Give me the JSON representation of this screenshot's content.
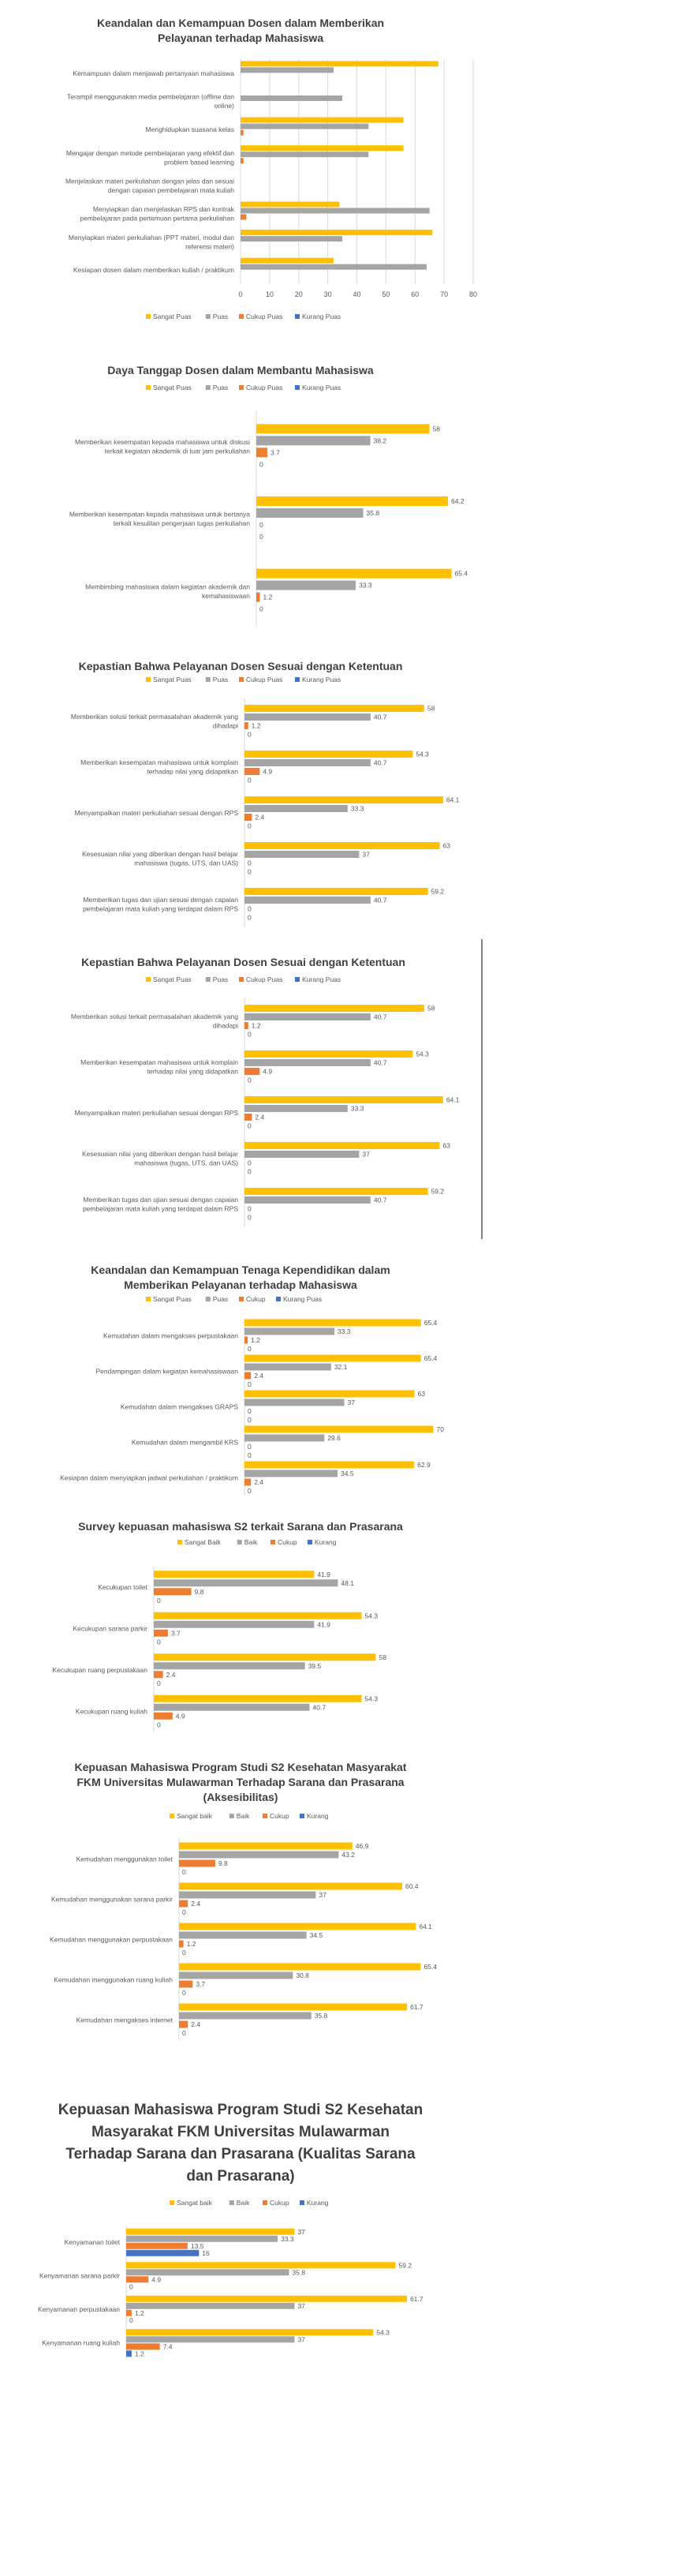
{
  "colors": {
    "yellow": "#FFC000",
    "gray": "#A5A5A5",
    "orange": "#ED7D31",
    "blue": "#4472C4",
    "axis": "#D9D9D9",
    "text": "#595959",
    "title": "#404040"
  },
  "chart_data": [
    {
      "type": "bar",
      "title_lines": [
        "Keandalan dan Kemampuan Dosen dalam Memberikan",
        "Pelayanan terhadap Mahasiswa"
      ],
      "categories": [
        [
          "Kemampuan dalam menjawab pertanyaan mahasiswa"
        ],
        [
          "Terampil menggunakan media pembelajaran (offline dan",
          "online)"
        ],
        [
          "Menghidupkan suasana kelas"
        ],
        [
          "Mengajar dengan metode pembelajaran yang efektif dan",
          "problem based learning"
        ],
        [
          "Menjelaskan materi perkuliahan dengan jelas dan sesuai",
          "dengan capaian pembelajaran mata kuliah"
        ],
        [
          "Menyiapkan dan menjelaskan RPS dan kontrak",
          "pembelajaran pada pertemuan pertama perkuliahan"
        ],
        [
          "Menyiapkan materi perkuliahan (PPT materi, modul dan",
          "referensi materi)"
        ],
        [
          "Kesiapan dosen dalam memberikan kuliah / praktikum"
        ]
      ],
      "series": [
        {
          "name": "Sangat Puas",
          "values": [
            68,
            null,
            56,
            56,
            null,
            34,
            66,
            32
          ]
        },
        {
          "name": "Puas",
          "values": [
            32,
            35,
            44,
            44,
            null,
            65,
            35,
            64
          ]
        },
        {
          "name": "Cukup Puas",
          "values": [
            0,
            0,
            1,
            1,
            0,
            2,
            0,
            0
          ]
        },
        {
          "name": "Kurang Puas",
          "values": [
            0,
            0,
            0,
            0,
            0,
            0,
            0,
            0
          ]
        }
      ],
      "xticks": [
        "0",
        "10",
        "20",
        "30",
        "40",
        "50",
        "60",
        "70",
        "80"
      ],
      "xlim": [
        0,
        80
      ],
      "grid": true,
      "legend_position": "bottom"
    },
    {
      "type": "bar",
      "title_lines": [
        "Daya Tanggap Dosen dalam Membantu Mahasiswa"
      ],
      "categories": [
        [
          "Memberikan kesempatan kepada mahasiswa untuk diskusi",
          "terkait kegiatan akademik di luar jam perkuliahan"
        ],
        [
          "Memberikan kesempatan kepada mahasiswa untuk bertanya",
          "terkait kesulitan pengerjaan tugas perkuliahan"
        ],
        [
          "Membimbing mahasiswa dalam kegiatan akademik dan",
          "kemahasiswaan"
        ]
      ],
      "series": [
        {
          "name": "Sangat Puas",
          "values": [
            58,
            64.2,
            65.4
          ],
          "labels": [
            "58",
            "64.2",
            "65.4"
          ]
        },
        {
          "name": "Puas",
          "values": [
            38.2,
            35.8,
            33.3
          ],
          "labels": [
            "38.2",
            "35.8",
            "33.3"
          ]
        },
        {
          "name": "Cukup Puas",
          "values": [
            3.7,
            0,
            1.2
          ],
          "labels": [
            "3.7",
            "0",
            "1.2"
          ]
        },
        {
          "name": "Kurang Puas",
          "values": [
            0,
            0,
            0
          ],
          "labels": [
            "0",
            "0",
            "0"
          ]
        }
      ],
      "xlim": [
        0,
        70
      ],
      "legend_position": "top"
    },
    {
      "type": "bar",
      "title_lines": [
        "Kepastian Bahwa Pelayanan Dosen Sesuai dengan Ketentuan"
      ],
      "categories": [
        [
          "Memberikan solusi terkait permasalahan akademik yang",
          "dihadapi"
        ],
        [
          "Memberikan kesempatan mahasiswa untuk komplain",
          "terhadap nilai yang didapatkan"
        ],
        [
          "Menyampaikan materi perkuliahan sesuai dengan RPS"
        ],
        [
          "Kesesuaian nilai yang diberikan dengan hasil belajar",
          "mahasiswa (tugas, UTS, dan UAS)"
        ],
        [
          "Memberikan tugas dan ujian sesuai dengan capaian",
          "pembelajaran mata kuliah yang terdapat dalam RPS"
        ]
      ],
      "series": [
        {
          "name": "Sangat Puas",
          "values": [
            58,
            54.3,
            64.1,
            63,
            59.2
          ],
          "labels": [
            "58",
            "54.3",
            "64.1",
            "63",
            "59.2"
          ]
        },
        {
          "name": "Puas",
          "values": [
            40.7,
            40.7,
            33.3,
            37,
            40.7
          ],
          "labels": [
            "40.7",
            "40.7",
            "33.3",
            "37",
            "40.7"
          ]
        },
        {
          "name": "Cukup Puas",
          "values": [
            1.2,
            4.9,
            2.4,
            0,
            0
          ],
          "labels": [
            "1.2",
            "4.9",
            "2.4",
            "0",
            "0"
          ]
        },
        {
          "name": "Kurang Puas",
          "values": [
            0,
            0,
            0,
            0,
            0
          ],
          "labels": [
            "0",
            "0",
            "0",
            "0",
            "0"
          ]
        }
      ],
      "xlim": [
        0,
        70
      ],
      "legend_position": "top"
    },
    {
      "type": "bar",
      "title_lines": [
        "Kepastian Bahwa Pelayanan Dosen Sesuai dengan Ketentuan"
      ],
      "categories": [
        [
          "Memberikan solusi terkait permasalahan akademik yang",
          "dihadapi"
        ],
        [
          "Memberikan kesempatan mahasiswa untuk komplain",
          "terhadap nilai yang didapatkan"
        ],
        [
          "Menyampaikan materi perkuliahan sesuai dengan RPS"
        ],
        [
          "Kesesuaian nilai yang diberikan dengan hasil belajar",
          "mahasiswa (tugas, UTS, dan UAS)"
        ],
        [
          "Memberikan tugas dan ujian sesuai dengan capaian",
          "pembelajaran mata kuliah yang terdapat dalam RPS"
        ]
      ],
      "series": [
        {
          "name": "Sangat Puas",
          "values": [
            58,
            54.3,
            64.1,
            63,
            59.2
          ],
          "labels": [
            "58",
            "54.3",
            "64.1",
            "63",
            "59.2"
          ]
        },
        {
          "name": "Puas",
          "values": [
            40.7,
            40.7,
            33.3,
            37,
            40.7
          ],
          "labels": [
            "40.7",
            "40.7",
            "33.3",
            "37",
            "40.7"
          ]
        },
        {
          "name": "Cukup Puas",
          "values": [
            1.2,
            4.9,
            2.4,
            0,
            0
          ],
          "labels": [
            "1.2",
            "4.9",
            "2.4",
            "0",
            "0"
          ]
        },
        {
          "name": "Kurang Puas",
          "values": [
            0,
            0,
            0,
            0,
            0
          ],
          "labels": [
            "0",
            "0",
            "0",
            "0",
            "0"
          ]
        }
      ],
      "xlim": [
        0,
        70
      ],
      "legend_position": "top"
    },
    {
      "type": "bar",
      "title_lines": [
        "Keandalan dan Kemampuan Tenaga Kependidikan dalam",
        "Memberikan Pelayanan terhadap Mahasiswa"
      ],
      "categories": [
        [
          "Kemudahan dalam mengakses perpustakaan"
        ],
        [
          "Pendampingan dalam kegiatan kemahasiswaan"
        ],
        [
          "Kemudahan dalam mengakses GRAPS"
        ],
        [
          "Kemudahan dalam mengambil KRS"
        ],
        [
          "Kesiapan dalam menyiapkan jadwal perkuliahan / praktikum"
        ]
      ],
      "series": [
        {
          "name": "Sangat Puas",
          "values": [
            65.4,
            65.4,
            63,
            70,
            62.9
          ],
          "labels": [
            "65.4",
            "65.4",
            "63",
            "70",
            "62.9"
          ]
        },
        {
          "name": "Puas",
          "values": [
            33.3,
            32.1,
            37,
            29.6,
            34.5
          ],
          "labels": [
            "33.3",
            "32.1",
            "37",
            "29.6",
            "34.5"
          ]
        },
        {
          "name": "Cukup",
          "values": [
            1.2,
            2.4,
            0,
            0,
            2.4
          ],
          "labels": [
            "1.2",
            "2.4",
            "0",
            "0",
            "2.4"
          ]
        },
        {
          "name": "Kurang Puas",
          "values": [
            0,
            0,
            0,
            0,
            0
          ],
          "labels": [
            "0",
            "0",
            "0",
            "0",
            "0"
          ]
        }
      ],
      "xlim": [
        0,
        76
      ],
      "legend_position": "top"
    },
    {
      "type": "bar",
      "title_lines": [
        "Survey kepuasan mahasiswa S2 terkait Sarana dan Prasarana"
      ],
      "categories": [
        [
          "Kecukupan toilet"
        ],
        [
          "Kecukupan sarana parkir"
        ],
        [
          "Kecukupan ruang perpustakaan"
        ],
        [
          "Kecukupan ruang kuliah"
        ]
      ],
      "series": [
        {
          "name": "Sangat Baik",
          "values": [
            41.9,
            54.3,
            58,
            54.3
          ],
          "labels": [
            "41.9",
            "54.3",
            "58",
            "54.3"
          ]
        },
        {
          "name": "Baik",
          "values": [
            48.1,
            41.9,
            39.5,
            40.7
          ],
          "labels": [
            "48.1",
            "41.9",
            "39.5",
            "40.7"
          ]
        },
        {
          "name": "Cukup",
          "values": [
            9.8,
            3.7,
            2.4,
            4.9
          ],
          "labels": [
            "9.8",
            "3.7",
            "2.4",
            "4.9"
          ]
        },
        {
          "name": "Kurang",
          "values": [
            0,
            0,
            0,
            0
          ],
          "labels": [
            "0",
            "0",
            "0",
            "0"
          ]
        }
      ],
      "xlim": [
        0,
        68
      ],
      "legend_position": "top"
    },
    {
      "type": "bar",
      "title_lines": [
        "Kepuasan Mahasiswa Program Studi S2 Kesehatan Masyarakat",
        "FKM Universitas Mulawarman Terhadap Sarana dan Prasarana",
        "(Aksesibilitas)"
      ],
      "categories": [
        [
          "Kemudahan menggunakan toilet"
        ],
        [
          "Kemudahan menggunakan sarana parkir"
        ],
        [
          "Kemudahan menggunakan perpustakaan"
        ],
        [
          "Kemudahan menggunakan ruang kuliah"
        ],
        [
          "Kemudahan mengakses internet"
        ]
      ],
      "series": [
        {
          "name": "Sangat baik",
          "values": [
            46.9,
            60.4,
            64.1,
            65.4,
            61.7
          ],
          "labels": [
            "46.9",
            "60.4",
            "64.1",
            "65.4",
            "61.7"
          ]
        },
        {
          "name": "Baik",
          "values": [
            43.2,
            37,
            34.5,
            30.8,
            35.8
          ],
          "labels": [
            "43.2",
            "37",
            "34.5",
            "30.8",
            "35.8"
          ]
        },
        {
          "name": "Cukup",
          "values": [
            9.8,
            2.4,
            1.2,
            3.7,
            2.4
          ],
          "labels": [
            "9.8",
            "2.4",
            "1.2",
            "3.7",
            "2.4"
          ]
        },
        {
          "name": "Kurang",
          "values": [
            0,
            0,
            0,
            0,
            0
          ],
          "labels": [
            "0",
            "0",
            "0",
            "0",
            "0"
          ]
        }
      ],
      "xlim": [
        0,
        70
      ],
      "legend_position": "top"
    },
    {
      "type": "bar",
      "title_lines": [
        "Kepuasan Mahasiswa Program Studi S2 Kesehatan",
        "Masyarakat FKM Universitas Mulawarman",
        "Terhadap Sarana dan Prasarana (Kualitas Sarana",
        "dan Prasarana)"
      ],
      "categories": [
        [
          "Kenyamanan toilet"
        ],
        [
          "Kenyamanan sarana parkir"
        ],
        [
          "Kenyamanan perpustakaan"
        ],
        [
          "Kenyamanan ruang kuliah"
        ]
      ],
      "series": [
        {
          "name": "Sangat baik",
          "values": [
            37,
            59.2,
            61.7,
            54.3
          ],
          "labels": [
            "37",
            "59.2",
            "61.7",
            "54.3"
          ]
        },
        {
          "name": "Baik",
          "values": [
            33.3,
            35.8,
            37,
            37
          ],
          "labels": [
            "33.3",
            "35.8",
            "37",
            "37"
          ]
        },
        {
          "name": "Cukup",
          "values": [
            13.5,
            4.9,
            1.2,
            7.4
          ],
          "labels": [
            "13.5",
            "4.9",
            "1.2",
            "7.4"
          ]
        },
        {
          "name": "Kurang",
          "values": [
            16,
            0,
            0,
            1.2
          ],
          "labels": [
            "16",
            "0",
            "0",
            "1.2"
          ]
        }
      ],
      "xlim": [
        0,
        65
      ],
      "legend_position": "top"
    }
  ]
}
